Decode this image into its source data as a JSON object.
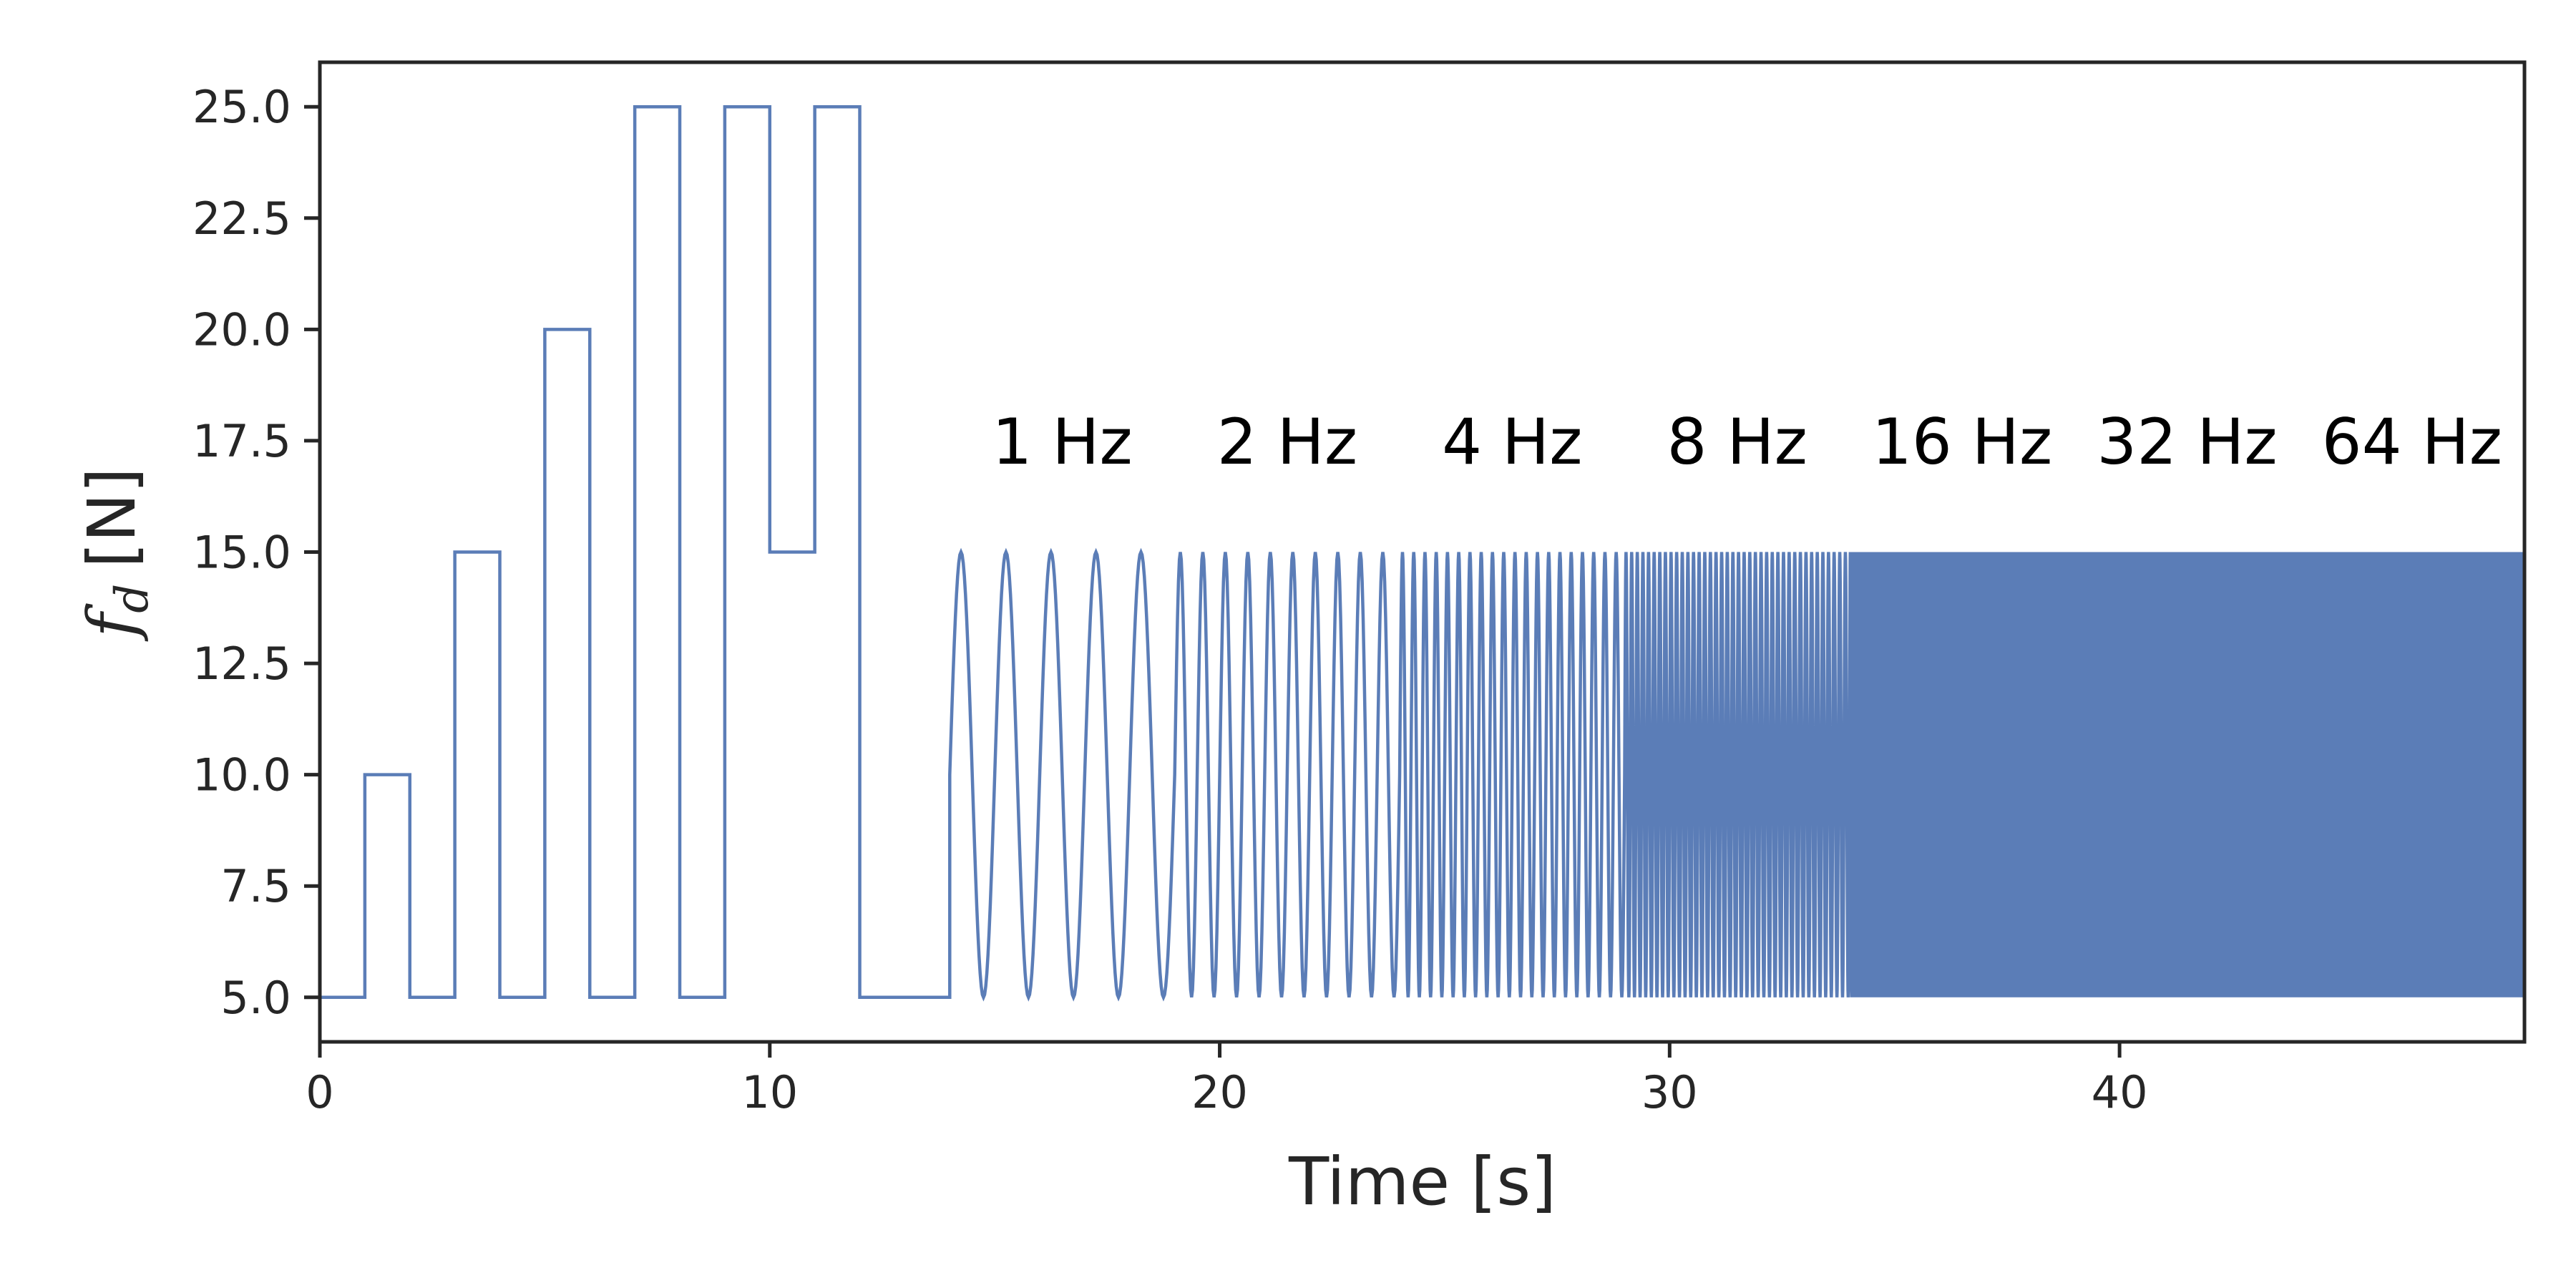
{
  "chart_data": {
    "type": "line",
    "title": "",
    "xlabel": "Time [s]",
    "ylabel": {
      "symbol": "f",
      "subscript": "d",
      "unit": "[N]"
    },
    "xlim": [
      0,
      49
    ],
    "ylim": [
      4,
      26
    ],
    "x_ticks": [
      0,
      10,
      20,
      30,
      40
    ],
    "x_tick_labels": [
      "0",
      "10",
      "20",
      "30",
      "40"
    ],
    "y_ticks": [
      5.0,
      7.5,
      10.0,
      12.5,
      15.0,
      17.5,
      20.0,
      22.5,
      25.0
    ],
    "y_tick_labels": [
      "5.0",
      "7.5",
      "10.0",
      "12.5",
      "15.0",
      "17.5",
      "20.0",
      "22.5",
      "25.0"
    ],
    "grid": false,
    "series": [
      {
        "color": "#5b7db7",
        "step_segments": [
          {
            "x_start": 0,
            "x_end": 1,
            "y": 5
          },
          {
            "x_start": 1,
            "x_end": 2,
            "y": 10
          },
          {
            "x_start": 2,
            "x_end": 3,
            "y": 5
          },
          {
            "x_start": 3,
            "x_end": 4,
            "y": 15
          },
          {
            "x_start": 4,
            "x_end": 5,
            "y": 5
          },
          {
            "x_start": 5,
            "x_end": 6,
            "y": 20
          },
          {
            "x_start": 6,
            "x_end": 7,
            "y": 5
          },
          {
            "x_start": 7,
            "x_end": 8,
            "y": 25
          },
          {
            "x_start": 8,
            "x_end": 9,
            "y": 5
          },
          {
            "x_start": 9,
            "x_end": 10,
            "y": 25
          },
          {
            "x_start": 10,
            "x_end": 11,
            "y": 15
          },
          {
            "x_start": 11,
            "x_end": 12,
            "y": 25
          },
          {
            "x_start": 12,
            "x_end": 14,
            "y": 5
          }
        ],
        "sine_segments": [
          {
            "x_start": 14,
            "x_end": 19,
            "frequency_hz": 1,
            "mean": 10,
            "amplitude": 5
          },
          {
            "x_start": 19,
            "x_end": 24,
            "frequency_hz": 2,
            "mean": 10,
            "amplitude": 5
          },
          {
            "x_start": 24,
            "x_end": 29,
            "frequency_hz": 4,
            "mean": 10,
            "amplitude": 5
          },
          {
            "x_start": 29,
            "x_end": 34,
            "frequency_hz": 8,
            "mean": 10,
            "amplitude": 5
          },
          {
            "x_start": 34,
            "x_end": 39,
            "frequency_hz": 16,
            "mean": 10,
            "amplitude": 5
          },
          {
            "x_start": 39,
            "x_end": 44,
            "frequency_hz": 32,
            "mean": 10,
            "amplitude": 5
          },
          {
            "x_start": 44,
            "x_end": 49,
            "frequency_hz": 64,
            "mean": 10,
            "amplitude": 5
          }
        ]
      }
    ],
    "annotations": [
      {
        "text": "1 Hz",
        "x": 16.5,
        "y": 17.5
      },
      {
        "text": "2 Hz",
        "x": 21.5,
        "y": 17.5
      },
      {
        "text": "4 Hz",
        "x": 26.5,
        "y": 17.5
      },
      {
        "text": "8 Hz",
        "x": 31.5,
        "y": 17.5
      },
      {
        "text": "16 Hz",
        "x": 36.5,
        "y": 17.5
      },
      {
        "text": "32 Hz",
        "x": 41.5,
        "y": 17.5
      },
      {
        "text": "64 Hz",
        "x": 46.5,
        "y": 17.5
      }
    ]
  }
}
